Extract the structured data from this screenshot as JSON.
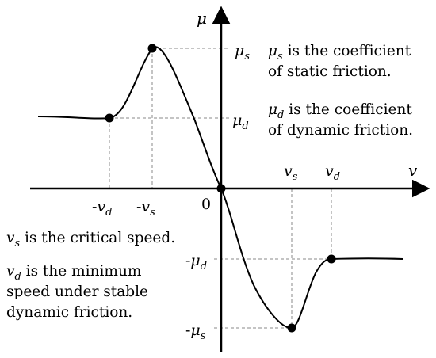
{
  "axes": {
    "y_name": "μ",
    "x_name": "v",
    "origin": "0"
  },
  "labels": {
    "mu_s": {
      "base": "μ",
      "sub": "s"
    },
    "mu_d": {
      "base": "μ",
      "sub": "d"
    },
    "neg_mu_d": {
      "prefix": "-",
      "base": "μ",
      "sub": "d"
    },
    "neg_mu_s": {
      "prefix": "-",
      "base": "μ",
      "sub": "s"
    },
    "v_s": {
      "base": "v",
      "sub": "s"
    },
    "v_d": {
      "base": "v",
      "sub": "d"
    },
    "neg_v_d": {
      "prefix": "-",
      "base": "v",
      "sub": "d"
    },
    "neg_v_s": {
      "prefix": "-",
      "base": "v",
      "sub": "s"
    }
  },
  "notes": {
    "mu_s_line1_sym": "μ",
    "mu_s_line1_sub": "s",
    "mu_s_line1_text": " is the coefficient",
    "mu_s_line2": "of static friction.",
    "mu_d_line1_sym": "μ",
    "mu_d_line1_sub": "d",
    "mu_d_line1_text": " is the coefficient",
    "mu_d_line2": "of dynamic friction.",
    "vs_line1_sym": "v",
    "vs_line1_sub": "s",
    "vs_line1_text": " is the critical speed.",
    "vd_line1_sym": "v",
    "vd_line1_sub": "d",
    "vd_line1_text": " is the minimum",
    "vd_line2": "speed under stable",
    "vd_line3": "dynamic friction."
  },
  "colors": {
    "curve": "#000000",
    "guide": "#888888"
  }
}
